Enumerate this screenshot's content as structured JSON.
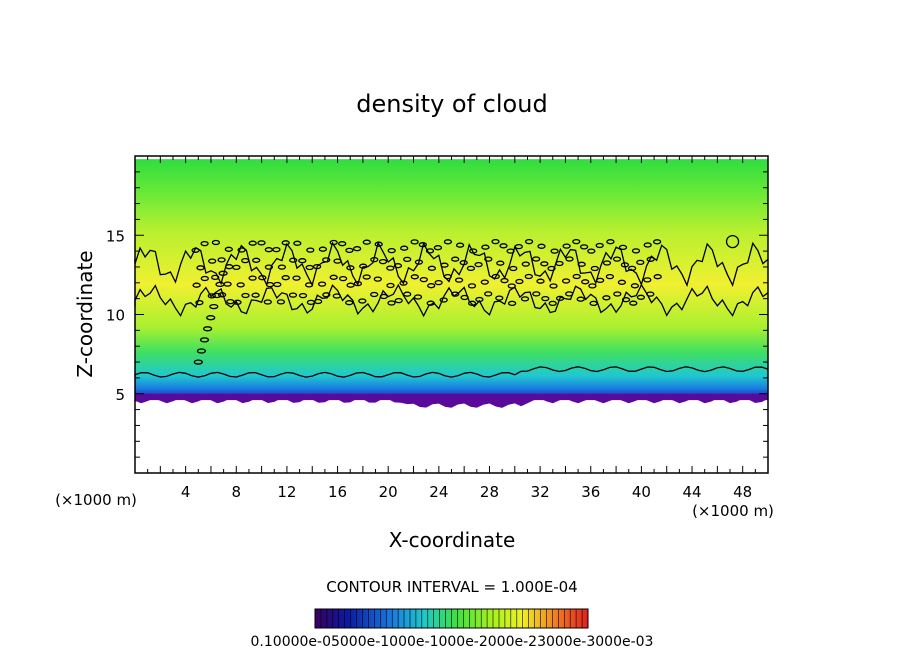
{
  "chart_data": {
    "type": "heatmap",
    "title": "density of cloud",
    "xlabel": "X-coordinate",
    "ylabel": "Z-coordinate",
    "x_unit_label": "(×1000 m)",
    "z_unit_label": "(×1000 m)",
    "xlim": [
      0,
      50
    ],
    "ylim": [
      0,
      20
    ],
    "x_ticks": [
      4,
      8,
      12,
      16,
      20,
      24,
      28,
      32,
      36,
      40,
      44,
      48
    ],
    "y_ticks": [
      5,
      10,
      15
    ],
    "cloud_layer": {
      "base_z": 4.6,
      "top_z": 19.8
    },
    "contour_interval_text": "CONTOUR INTERVAL = 1.000E-04",
    "colorbar_label_text": "0.10000e-05000e-1000e-1000e-2000e-23000e-3000e-03",
    "colormap": [
      "#3a0060",
      "#0a1aa0",
      "#1a7ae0",
      "#20c8c8",
      "#40e040",
      "#a0f020",
      "#f0f020",
      "#f08020",
      "#e02020"
    ]
  }
}
